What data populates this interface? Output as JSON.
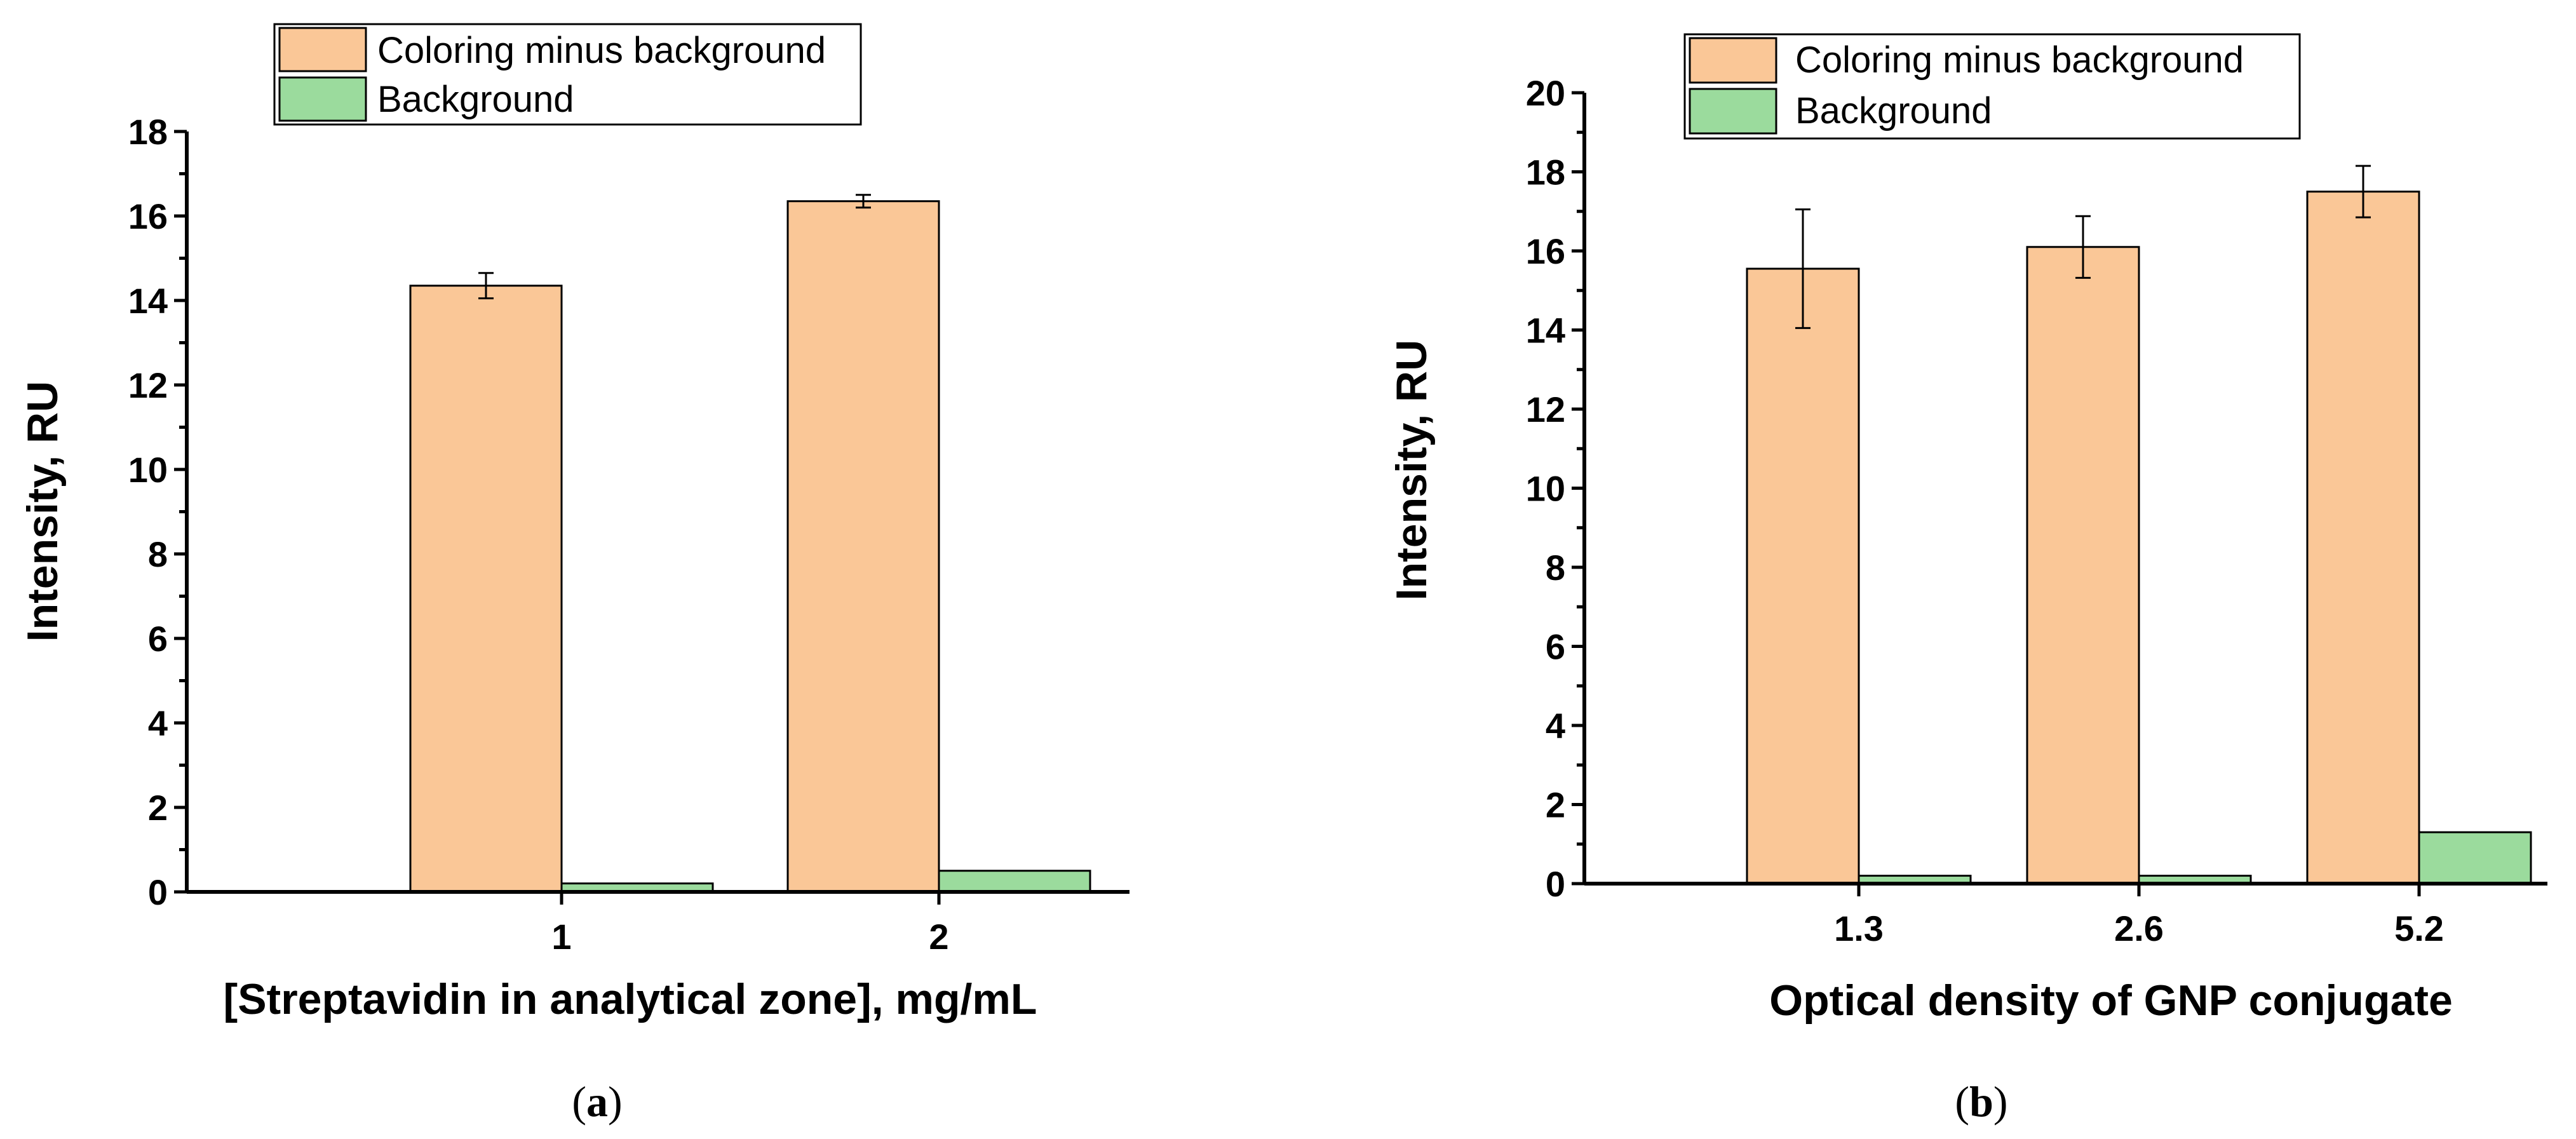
{
  "colors": {
    "coloring": "#FAC797",
    "background": "#9BDB9D",
    "stroke": "#000000"
  },
  "chart_data": [
    {
      "type": "bar",
      "panel": "(a)",
      "panel_open": "(",
      "panel_letter": "a",
      "panel_close": ")",
      "xlabel": "[Streptavidin in analytical zone], mg/mL",
      "ylabel": "Intensity, RU",
      "categories": [
        "1",
        "2"
      ],
      "ylim": [
        0,
        18
      ],
      "yticks": [
        "0",
        "2",
        "4",
        "6",
        "8",
        "10",
        "12",
        "14",
        "16",
        "18"
      ],
      "series": [
        {
          "name": "Coloring minus background",
          "values": [
            14.35,
            16.35
          ],
          "errors": [
            0.3,
            0.15
          ]
        },
        {
          "name": "Background",
          "values": [
            0.2,
            0.5
          ],
          "errors": [
            0,
            0
          ]
        }
      ],
      "legend": "top"
    },
    {
      "type": "bar",
      "panel": "(b)",
      "panel_open": "(",
      "panel_letter": "b",
      "panel_close": ")",
      "xlabel": "Optical density of GNP conjugate",
      "ylabel": "Intensity, RU",
      "categories": [
        "1.3",
        "2.6",
        "5.2"
      ],
      "ylim": [
        0,
        20
      ],
      "yticks": [
        "0",
        "2",
        "4",
        "6",
        "8",
        "10",
        "12",
        "14",
        "16",
        "18",
        "20"
      ],
      "series": [
        {
          "name": "Coloring minus background",
          "values": [
            15.55,
            16.1,
            17.5
          ],
          "errors": [
            1.5,
            0.78,
            0.65
          ]
        },
        {
          "name": "Background",
          "values": [
            0.2,
            0.2,
            1.3
          ],
          "errors": [
            0,
            0,
            0
          ]
        }
      ],
      "legend": "top"
    }
  ]
}
